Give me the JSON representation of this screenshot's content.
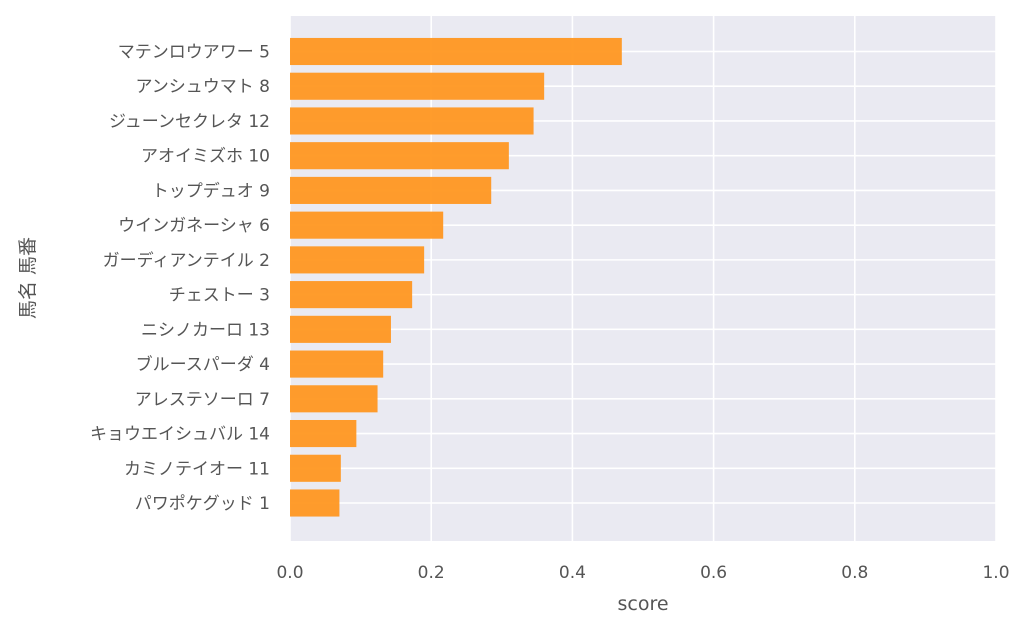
{
  "chart_data": {
    "type": "bar",
    "orientation": "horizontal",
    "categories": [
      "マテンロウアワー 5",
      "アンシュウマト 8",
      "ジューンセクレタ 12",
      "アオイミズホ 10",
      "トップデュオ 9",
      "ウインガネーシャ 6",
      "ガーディアンテイル 2",
      "チェストー 3",
      "ニシノカーロ 13",
      "ブルースパーダ 4",
      "アレステソーロ 7",
      "キョウエイシュバル 14",
      "カミノテイオー 11",
      "パワポケグッド 1"
    ],
    "values": [
      0.47,
      0.36,
      0.345,
      0.31,
      0.285,
      0.217,
      0.19,
      0.173,
      0.143,
      0.132,
      0.124,
      0.094,
      0.072,
      0.07
    ],
    "xlabel": "score",
    "ylabel": "馬名 馬番",
    "xlim": [
      0.0,
      1.0
    ],
    "xticks": [
      "0.0",
      "0.2",
      "0.4",
      "0.6",
      "0.8",
      "1.0"
    ],
    "grid": true,
    "colors": {
      "bar": "#ff9721",
      "plot_background": "#eaeaf2",
      "grid": "#ffffff",
      "text": "#555555"
    }
  }
}
